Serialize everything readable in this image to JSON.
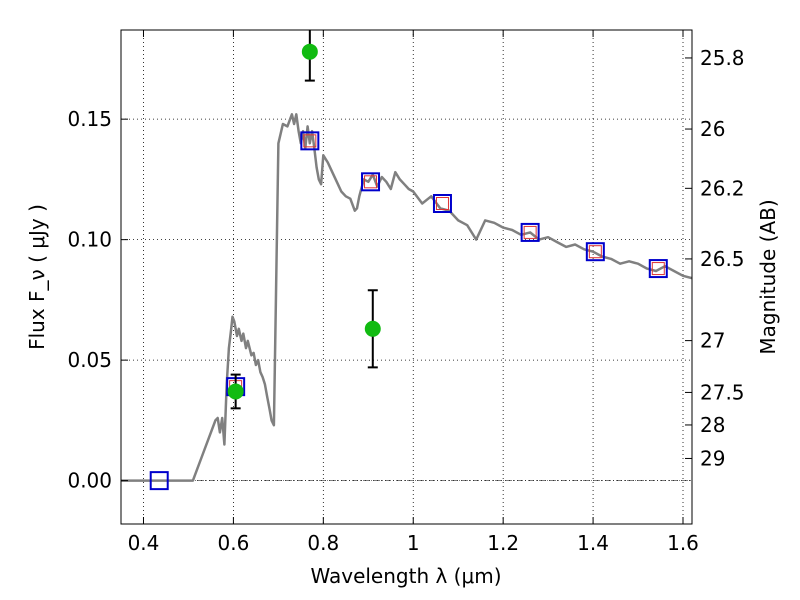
{
  "chart_data": {
    "type": "scatter",
    "xlabel": "Wavelength  λ (μm)",
    "ylabel": "Flux  F_ν  ( μJy )",
    "ylabel_right": "Magnitude (AB)",
    "xlim": [
      0.35,
      1.62
    ],
    "ylim": [
      -0.018,
      0.187
    ],
    "grid": true,
    "x_ticks": [
      0.4,
      0.6,
      0.8,
      1.0,
      1.2,
      1.4,
      1.6
    ],
    "x_tick_labels": [
      "0.4",
      "0.6",
      "0.8",
      "1",
      "1.2",
      "1.4",
      "1.6"
    ],
    "y_ticks": [
      0.0,
      0.05,
      0.1,
      0.15
    ],
    "y_tick_labels": [
      "0.00",
      "0.05",
      "0.10",
      "0.15"
    ],
    "right_ticks": [
      {
        "label": "25.8",
        "flux": 0.1754
      },
      {
        "label": "26",
        "flux": 0.1459
      },
      {
        "label": "26.2",
        "flux": 0.1213
      },
      {
        "label": "26.5",
        "flux": 0.092
      },
      {
        "label": "27",
        "flux": 0.0581
      },
      {
        "label": "27.5",
        "flux": 0.0366
      },
      {
        "label": "28",
        "flux": 0.0231
      },
      {
        "label": "29",
        "flux": 0.0092
      }
    ],
    "series": [
      {
        "kind": "line",
        "color": "#808080",
        "x": [
          0.35,
          0.5,
          0.51,
          0.53,
          0.55,
          0.56,
          0.565,
          0.57,
          0.575,
          0.58,
          0.585,
          0.59,
          0.595,
          0.598,
          0.602,
          0.608,
          0.612,
          0.618,
          0.622,
          0.628,
          0.632,
          0.64,
          0.645,
          0.65,
          0.655,
          0.66,
          0.665,
          0.67,
          0.675,
          0.68,
          0.685,
          0.69,
          0.695,
          0.7,
          0.71,
          0.72,
          0.73,
          0.735,
          0.74,
          0.745,
          0.75,
          0.755,
          0.76,
          0.765,
          0.77,
          0.775,
          0.78,
          0.785,
          0.79,
          0.795,
          0.8,
          0.81,
          0.82,
          0.83,
          0.84,
          0.85,
          0.86,
          0.87,
          0.875,
          0.88,
          0.89,
          0.9,
          0.91,
          0.92,
          0.93,
          0.94,
          0.95,
          0.96,
          0.97,
          0.98,
          0.99,
          1.0,
          1.02,
          1.04,
          1.06,
          1.08,
          1.1,
          1.12,
          1.14,
          1.16,
          1.18,
          1.2,
          1.22,
          1.24,
          1.26,
          1.28,
          1.3,
          1.32,
          1.34,
          1.36,
          1.38,
          1.4,
          1.42,
          1.44,
          1.46,
          1.48,
          1.5,
          1.52,
          1.54,
          1.56,
          1.58,
          1.6,
          1.62
        ],
        "y": [
          0.0,
          0.0,
          0.0,
          0.01,
          0.02,
          0.025,
          0.026,
          0.02,
          0.026,
          0.015,
          0.04,
          0.055,
          0.063,
          0.068,
          0.066,
          0.06,
          0.063,
          0.058,
          0.061,
          0.055,
          0.058,
          0.052,
          0.053,
          0.048,
          0.05,
          0.045,
          0.043,
          0.04,
          0.035,
          0.03,
          0.025,
          0.023,
          0.08,
          0.14,
          0.148,
          0.147,
          0.152,
          0.148,
          0.152,
          0.145,
          0.14,
          0.145,
          0.138,
          0.147,
          0.14,
          0.145,
          0.138,
          0.13,
          0.125,
          0.123,
          0.135,
          0.132,
          0.128,
          0.124,
          0.12,
          0.118,
          0.117,
          0.112,
          0.113,
          0.118,
          0.125,
          0.124,
          0.127,
          0.122,
          0.126,
          0.124,
          0.121,
          0.128,
          0.125,
          0.123,
          0.121,
          0.12,
          0.115,
          0.118,
          0.113,
          0.112,
          0.108,
          0.106,
          0.1,
          0.108,
          0.107,
          0.105,
          0.104,
          0.102,
          0.103,
          0.1,
          0.101,
          0.099,
          0.097,
          0.098,
          0.096,
          0.095,
          0.093,
          0.092,
          0.09,
          0.091,
          0.09,
          0.088,
          0.087,
          0.089,
          0.087,
          0.085,
          0.084
        ]
      },
      {
        "kind": "markers",
        "marker": "square-open",
        "color": "#0000cc",
        "x": [
          0.435,
          0.605,
          0.77,
          0.905,
          1.065,
          1.26,
          1.405,
          1.545
        ],
        "y": [
          0.0,
          0.039,
          0.141,
          0.124,
          0.115,
          0.103,
          0.095,
          0.088
        ]
      },
      {
        "kind": "markers",
        "marker": "circle",
        "color": "#11bb11",
        "x": [
          0.605,
          0.77,
          0.91
        ],
        "y": [
          0.037,
          0.178,
          0.063
        ],
        "err": [
          0.007,
          0.012,
          0.016
        ]
      }
    ]
  }
}
